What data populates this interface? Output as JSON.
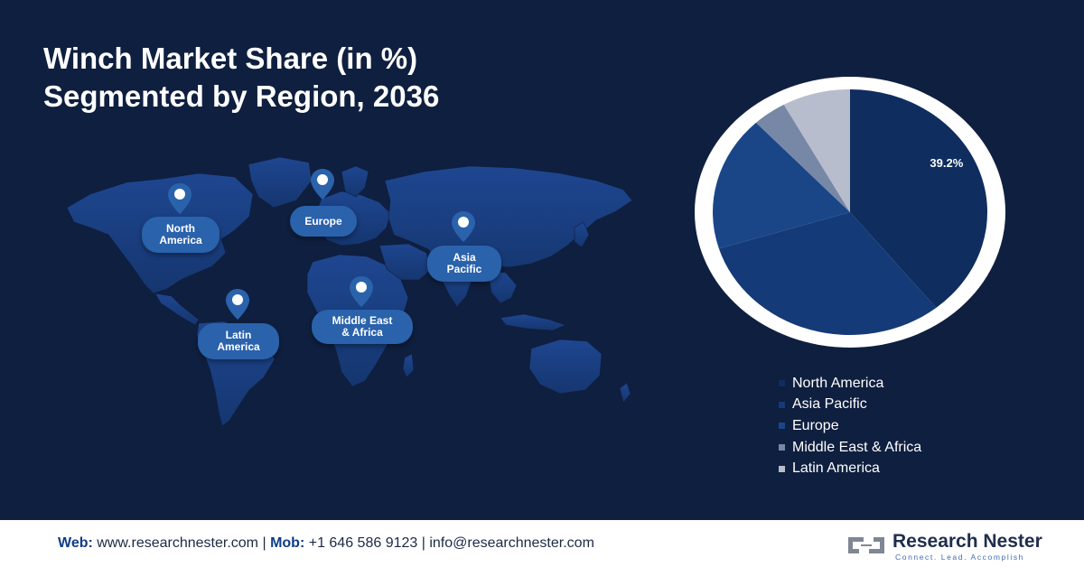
{
  "header": {
    "title_line1": "Winch Market Share (in %)",
    "title_line2": "Segmented by Region, 2036"
  },
  "map": {
    "labels": {
      "north_america": [
        "North",
        "America"
      ],
      "europe": [
        "Europe"
      ],
      "asia_pacific": [
        "Asia",
        "Pacific"
      ],
      "latin_america": [
        "Latin",
        "America"
      ],
      "middle_east_africa": [
        "Middle East",
        "& Africa"
      ]
    }
  },
  "chart_data": {
    "type": "pie",
    "title": "Winch Market Share (in %) Segmented by Region, 2036",
    "categories": [
      "North America",
      "Asia Pacific",
      "Europe",
      "Middle East & Africa",
      "Latin America"
    ],
    "values": [
      39.2,
      31.0,
      17.8,
      4.0,
      8.0
    ],
    "data_labels": [
      "39.2%",
      "",
      "",
      "",
      ""
    ],
    "colors": [
      "#0f2d5f",
      "#143a78",
      "#1a4688",
      "#7787a6",
      "#b7bdcc"
    ],
    "legend_position": "bottom-right"
  },
  "footer": {
    "web_label": "Web:",
    "web_value": "www.researchnester.com",
    "sep1": "|",
    "mob_label": "Mob:",
    "mob_value": "+1 646 586 9123",
    "sep2": "|",
    "email": "info@researchnester.com"
  },
  "logo": {
    "name": "Research Nester",
    "tagline": "Connect. Lead. Accomplish"
  }
}
